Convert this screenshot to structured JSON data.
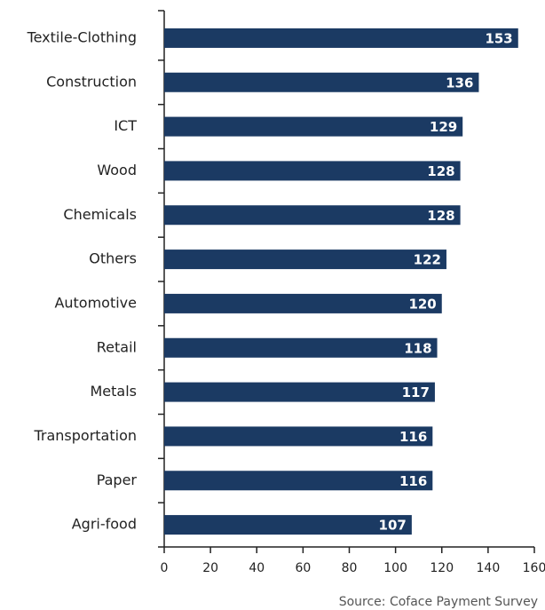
{
  "chart_data": {
    "type": "bar",
    "orientation": "horizontal",
    "categories": [
      "Textile-Clothing",
      "Construction",
      "ICT",
      "Wood",
      "Chemicals",
      "Others",
      "Automotive",
      "Retail",
      "Metals",
      "Transportation",
      "Paper",
      "Agri-food"
    ],
    "values": [
      153,
      136,
      129,
      128,
      128,
      122,
      120,
      118,
      117,
      116,
      116,
      107
    ],
    "color": "#1b3a63",
    "xlim": [
      0,
      160
    ],
    "xticks": [
      0,
      20,
      40,
      60,
      80,
      100,
      120,
      140,
      160
    ],
    "source": "Source: Coface Payment Survey"
  }
}
